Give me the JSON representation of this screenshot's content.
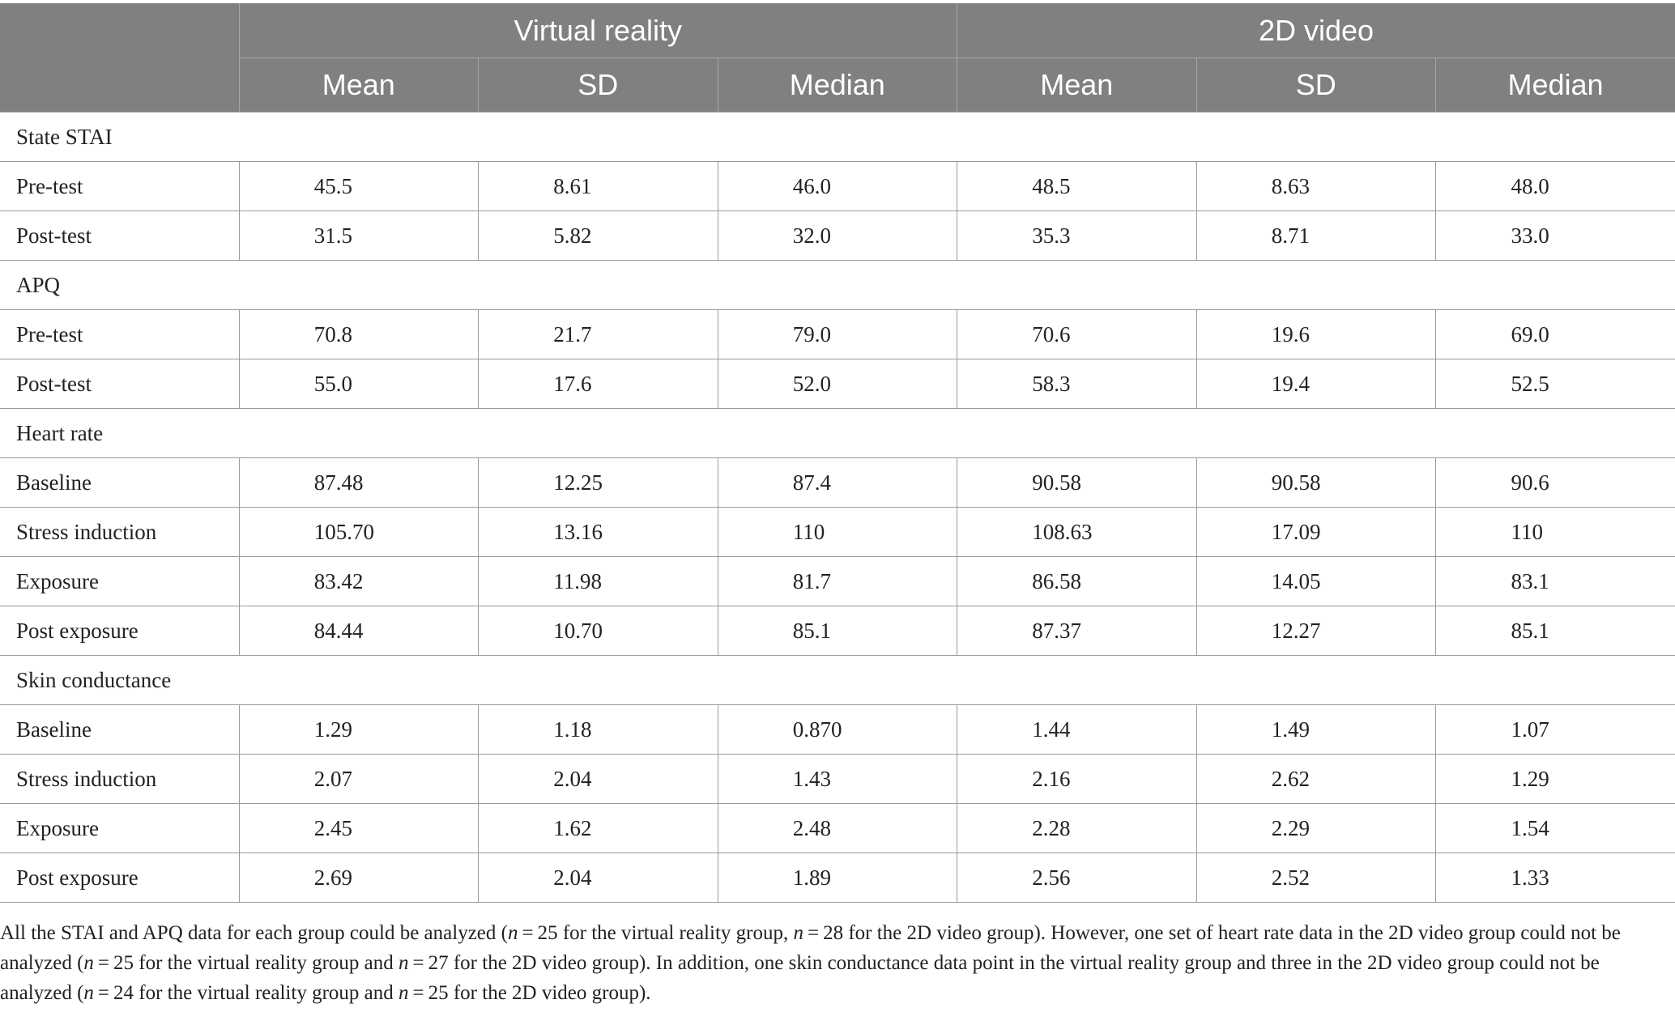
{
  "table": {
    "groups": [
      "Virtual reality",
      "2D video"
    ],
    "columns": [
      "Mean",
      "SD",
      "Median",
      "Mean",
      "SD",
      "Median"
    ],
    "sections": [
      {
        "title": "State STAI",
        "rows": [
          {
            "label": "Pre-test",
            "values": [
              "45.5",
              "8.61",
              "46.0",
              "48.5",
              "8.63",
              "48.0"
            ]
          },
          {
            "label": "Post-test",
            "values": [
              "31.5",
              "5.82",
              "32.0",
              "35.3",
              "8.71",
              "33.0"
            ]
          }
        ]
      },
      {
        "title": "APQ",
        "rows": [
          {
            "label": "Pre-test",
            "values": [
              "70.8",
              "21.7",
              "79.0",
              "70.6",
              "19.6",
              "69.0"
            ]
          },
          {
            "label": "Post-test",
            "values": [
              "55.0",
              "17.6",
              "52.0",
              "58.3",
              "19.4",
              "52.5"
            ]
          }
        ]
      },
      {
        "title": "Heart rate",
        "rows": [
          {
            "label": "Baseline",
            "values": [
              "87.48",
              "12.25",
              "87.4",
              "90.58",
              "90.58",
              "90.6"
            ]
          },
          {
            "label": "Stress induction",
            "values": [
              "105.70",
              "13.16",
              "110",
              "108.63",
              "17.09",
              "110"
            ]
          },
          {
            "label": "Exposure",
            "values": [
              "83.42",
              "11.98",
              "81.7",
              "86.58",
              "14.05",
              "83.1"
            ]
          },
          {
            "label": "Post exposure",
            "values": [
              "84.44",
              "10.70",
              "85.1",
              "87.37",
              "12.27",
              "85.1"
            ]
          }
        ]
      },
      {
        "title": "Skin conductance",
        "rows": [
          {
            "label": "Baseline",
            "values": [
              "1.29",
              "1.18",
              "0.870",
              "1.44",
              "1.49",
              "1.07"
            ]
          },
          {
            "label": "Stress induction",
            "values": [
              "2.07",
              "2.04",
              "1.43",
              "2.16",
              "2.62",
              "1.29"
            ]
          },
          {
            "label": "Exposure",
            "values": [
              "2.45",
              "1.62",
              "2.48",
              "2.28",
              "2.29",
              "1.54"
            ]
          },
          {
            "label": "Post exposure",
            "values": [
              "2.69",
              "2.04",
              "1.89",
              "2.56",
              "2.52",
              "1.33"
            ]
          }
        ]
      }
    ]
  },
  "footnote": {
    "p1": "All the STAI and APQ data for each group could be analyzed (",
    "n1": "n",
    "p2": " = 25 for the virtual reality group, ",
    "n2": "n",
    "p3": " = 28 for the 2D video group). However, one set of heart rate data in the 2D video group could not be analyzed (",
    "n3": "n",
    "p4": " = 25 for the virtual reality group and ",
    "n4": "n",
    "p5": " = 27 for the 2D video group). In addition, one skin conductance data point in the virtual reality group and three in the 2D video group could not be analyzed (",
    "n5": "n",
    "p6": " = 24 for the virtual reality group and ",
    "n6": "n",
    "p7": " = 25 for the 2D video group)."
  }
}
